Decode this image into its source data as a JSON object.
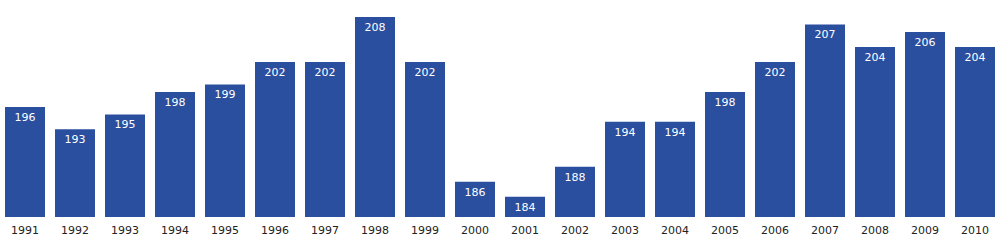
{
  "chart_data": {
    "type": "bar",
    "categories": [
      "1991",
      "1992",
      "1993",
      "1994",
      "1995",
      "1996",
      "1997",
      "1998",
      "1999",
      "2000",
      "2001",
      "2002",
      "2003",
      "2004",
      "2005",
      "2006",
      "2007",
      "2008",
      "2009",
      "2010"
    ],
    "values": [
      196,
      193,
      195,
      198,
      199,
      202,
      202,
      208,
      202,
      186,
      184,
      188,
      194,
      194,
      198,
      202,
      207,
      204,
      206,
      204
    ],
    "color": "#2a4f9f",
    "ylim": [
      181.3,
      208
    ],
    "grid": false,
    "data_labels": true,
    "tick_labels": "x"
  }
}
